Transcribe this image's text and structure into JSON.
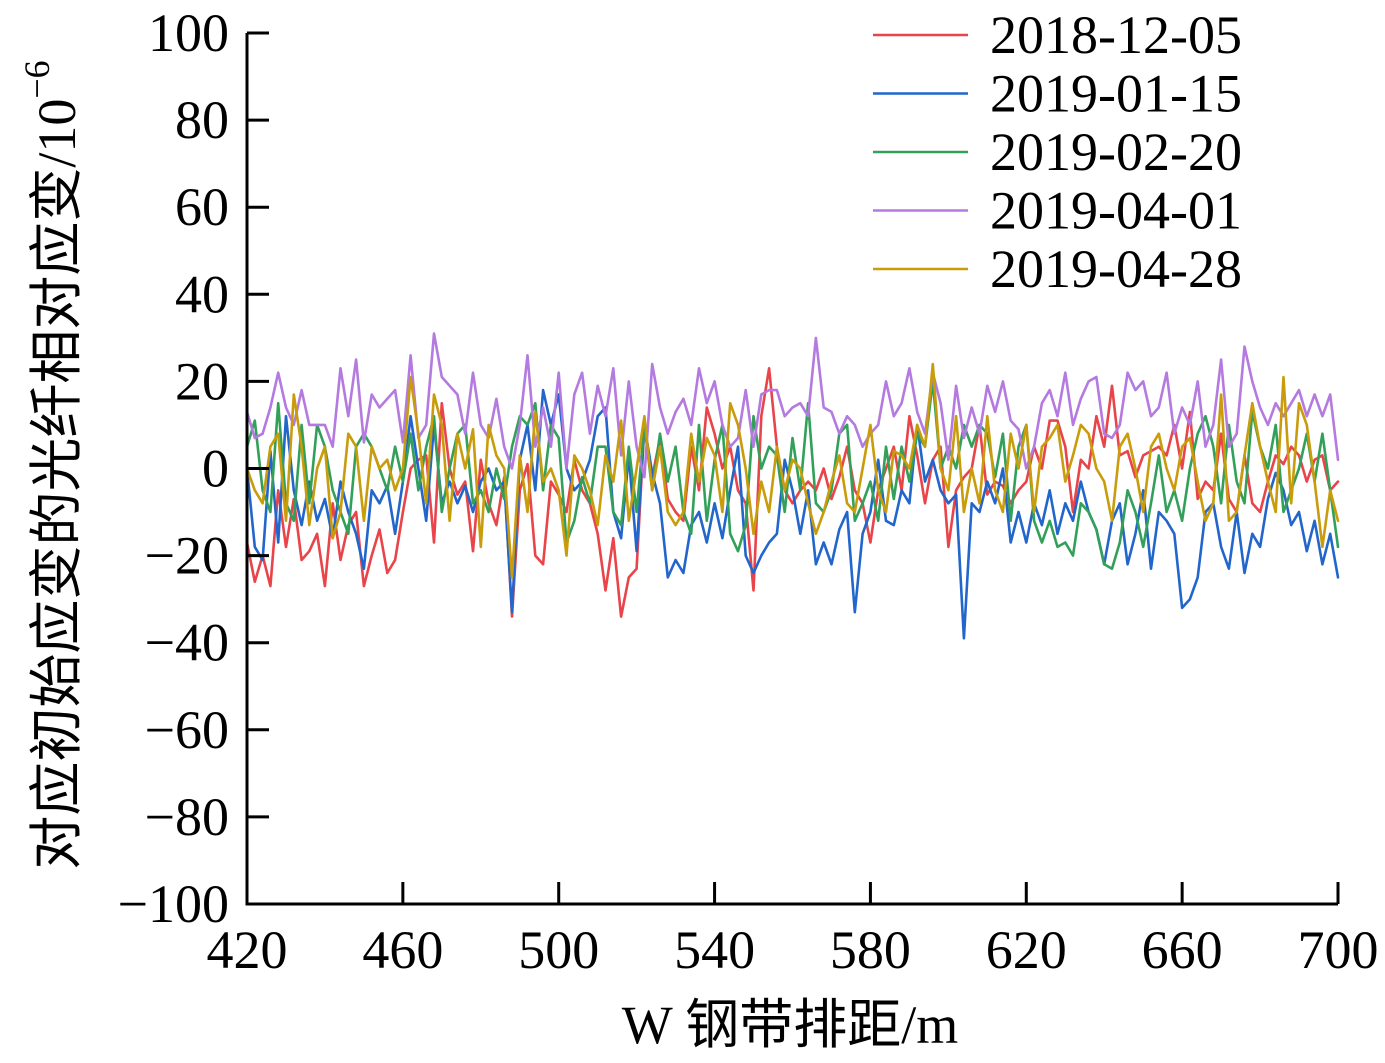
{
  "chart_data": {
    "type": "line",
    "xlabel": "W 钢带排距/m",
    "ylabel": "对应初始应变的光纤相对应变/10",
    "ylabel_exponent": "−6",
    "xlim": [
      420,
      700
    ],
    "ylim": [
      -100,
      100
    ],
    "xticks": [
      420,
      460,
      500,
      540,
      580,
      620,
      660,
      700
    ],
    "xtick_labels": [
      "420",
      "460",
      "500",
      "540",
      "580",
      "620",
      "660",
      "700"
    ],
    "yticks": [
      -100,
      -80,
      -60,
      -40,
      -20,
      0,
      20,
      40,
      60,
      80,
      100
    ],
    "ytick_labels": [
      "−100",
      "−80",
      "−60",
      "−40",
      "−20",
      "0",
      "20",
      "40",
      "60",
      "80",
      "100"
    ],
    "grid": false,
    "legend_position": "top-right",
    "x": [
      420,
      422,
      424,
      426,
      428,
      430,
      432,
      434,
      436,
      438,
      440,
      442,
      444,
      446,
      448,
      450,
      452,
      454,
      456,
      458,
      460,
      462,
      464,
      466,
      468,
      470,
      472,
      474,
      476,
      478,
      480,
      482,
      484,
      486,
      488,
      490,
      492,
      494,
      496,
      498,
      500,
      502,
      504,
      506,
      508,
      510,
      512,
      514,
      516,
      518,
      520,
      522,
      524,
      526,
      528,
      530,
      532,
      534,
      536,
      538,
      540,
      542,
      544,
      546,
      548,
      550,
      552,
      554,
      556,
      558,
      560,
      562,
      564,
      566,
      568,
      570,
      572,
      574,
      576,
      578,
      580,
      582,
      584,
      586,
      588,
      590,
      592,
      594,
      596,
      598,
      600,
      602,
      604,
      606,
      608,
      610,
      612,
      614,
      616,
      618,
      620,
      622,
      624,
      626,
      628,
      630,
      632,
      634,
      636,
      638,
      640,
      642,
      644,
      646,
      648,
      650,
      652,
      654,
      656,
      658,
      660,
      662,
      664,
      666,
      668,
      670,
      672,
      674,
      676,
      678,
      680,
      682,
      684,
      686,
      688,
      690,
      692,
      694,
      696,
      698,
      700
    ],
    "series": [
      {
        "name": "2018-12-05",
        "color": "#e8444a",
        "values": [
          -17,
          -26,
          -20,
          -27,
          -5,
          -18,
          -7,
          -21,
          -19,
          -15,
          -27,
          -8,
          -21,
          -13,
          -10,
          -27,
          -20,
          -14,
          -24,
          -21,
          -10,
          0,
          2,
          3,
          -17,
          15,
          0,
          -6,
          -3,
          -19,
          2,
          -8,
          -13,
          -2,
          -34,
          -5,
          1,
          -20,
          -22,
          -3,
          -6,
          -10,
          2,
          -5,
          -8,
          -15,
          -28,
          -16,
          -34,
          -25,
          -23,
          10,
          -2,
          7,
          -7,
          -10,
          -12,
          5,
          -5,
          14,
          8,
          0,
          5,
          -5,
          -8,
          -28,
          12,
          23,
          5,
          -5,
          -8,
          -5,
          -3,
          -5,
          0,
          -7,
          -2,
          5,
          -5,
          -8,
          -17,
          -5,
          0,
          5,
          -5,
          12,
          3,
          -8,
          2,
          5,
          -18,
          -5,
          -2,
          0,
          10,
          -6,
          -3,
          -4,
          -8,
          -5,
          -3,
          5,
          0,
          11,
          11,
          5,
          -10,
          2,
          0,
          12,
          5,
          19,
          3,
          4,
          -2,
          3,
          4,
          5,
          3,
          10,
          0,
          13,
          -7,
          -3,
          -5,
          8,
          -7,
          -10,
          3,
          -8,
          -10,
          -3,
          3,
          1,
          5,
          3,
          -3,
          2,
          3,
          -5,
          -3
        ]
      },
      {
        "name": "2019-01-15",
        "color": "#2266cc",
        "values": [
          0,
          -18,
          -21,
          4,
          -17,
          12,
          -5,
          -13,
          -3,
          -12,
          -7,
          -16,
          -3,
          -10,
          -15,
          -23,
          -5,
          -8,
          -4,
          -15,
          -3,
          12,
          0,
          -12,
          10,
          -8,
          -3,
          -8,
          -4,
          -10,
          -3,
          0,
          -5,
          -3,
          -33,
          2,
          10,
          -5,
          18,
          10,
          17,
          0,
          -5,
          -3,
          2,
          12,
          14,
          -10,
          -16,
          3,
          -19,
          10,
          -1,
          -8,
          -25,
          -21,
          -24,
          -13,
          -10,
          -17,
          -8,
          -16,
          -5,
          5,
          -20,
          -24,
          -20,
          -17,
          -15,
          2,
          -5,
          -15,
          -5,
          -22,
          -17,
          -22,
          -14,
          -10,
          -33,
          -15,
          -10,
          2,
          -12,
          -13,
          -5,
          -8,
          10,
          -3,
          2,
          -5,
          -8,
          -6,
          -39,
          -8,
          -10,
          -3,
          -8,
          0,
          -17,
          -10,
          -17,
          -8,
          -13,
          -5,
          -15,
          -8,
          -12,
          -3,
          -10,
          -14,
          -22,
          -12,
          -8,
          -22,
          -15,
          -5,
          -23,
          -10,
          -12,
          -15,
          -32,
          -30,
          -25,
          -10,
          -8,
          -18,
          -23,
          -10,
          -24,
          -15,
          -18,
          -7,
          -1,
          -5,
          -13,
          -10,
          -19,
          -12,
          -22,
          -15,
          -25
        ]
      },
      {
        "name": "2019-02-20",
        "color": "#33a05a",
        "values": [
          5,
          11,
          -5,
          -10,
          15,
          -8,
          -12,
          10,
          -8,
          10,
          5,
          -5,
          -10,
          -15,
          5,
          8,
          5,
          0,
          -5,
          5,
          -3,
          8,
          -5,
          5,
          12,
          -10,
          0,
          8,
          10,
          -8,
          -5,
          -10,
          0,
          -7,
          5,
          12,
          10,
          15,
          -5,
          10,
          7,
          -17,
          -12,
          -2,
          -8,
          5,
          5,
          -10,
          -13,
          5,
          -10,
          10,
          -5,
          8,
          -3,
          5,
          -10,
          -15,
          10,
          -12,
          2,
          10,
          -15,
          -19,
          -13,
          12,
          0,
          5,
          3,
          -10,
          7,
          -5,
          15,
          -8,
          -10,
          -5,
          8,
          10,
          -12,
          -8,
          -3,
          -12,
          5,
          -7,
          5,
          -3,
          8,
          5,
          20,
          0,
          5,
          0,
          10,
          5,
          10,
          8,
          -2,
          8,
          -12,
          5,
          10,
          -12,
          -17,
          -12,
          -18,
          -17,
          -20,
          -8,
          -10,
          -14,
          -22,
          -23,
          -17,
          -5,
          -10,
          -18,
          -8,
          3,
          -10,
          -5,
          -12,
          0,
          8,
          12,
          5,
          -8,
          10,
          -3,
          -8,
          13,
          5,
          0,
          10,
          -10,
          -5,
          0,
          8,
          -3,
          8,
          -5,
          -18
        ]
      },
      {
        "name": "2019-04-01",
        "color": "#b47ae0",
        "values": [
          13,
          7,
          8,
          14,
          22,
          14,
          10,
          18,
          10,
          10,
          10,
          5,
          23,
          12,
          25,
          6,
          17,
          14,
          16,
          18,
          6,
          26,
          7,
          10,
          31,
          21,
          19,
          17,
          8,
          22,
          10,
          7,
          16,
          5,
          0,
          10,
          26,
          5,
          14,
          5,
          22,
          0,
          17,
          22,
          8,
          19,
          12,
          23,
          3,
          20,
          5,
          -2,
          24,
          14,
          8,
          13,
          16,
          10,
          23,
          15,
          20,
          10,
          5,
          7,
          18,
          5,
          17,
          18,
          18,
          12,
          14,
          15,
          12,
          30,
          14,
          13,
          8,
          12,
          10,
          5,
          8,
          10,
          20,
          12,
          15,
          23,
          13,
          8,
          22,
          15,
          2,
          19,
          7,
          14,
          8,
          19,
          13,
          20,
          11,
          9,
          0,
          5,
          15,
          18,
          12,
          22,
          10,
          16,
          20,
          21,
          8,
          7,
          10,
          22,
          18,
          20,
          12,
          14,
          22,
          8,
          14,
          10,
          20,
          5,
          10,
          25,
          5,
          8,
          28,
          20,
          14,
          10,
          15,
          12,
          15,
          18,
          12,
          17,
          12,
          17,
          2
        ]
      },
      {
        "name": "2019-04-28",
        "color": "#c99c0c",
        "values": [
          0,
          -5,
          -8,
          5,
          8,
          -12,
          17,
          5,
          -13,
          0,
          5,
          -16,
          -10,
          8,
          5,
          -12,
          5,
          0,
          2,
          -5,
          0,
          21,
          8,
          -8,
          17,
          10,
          -12,
          8,
          0,
          9,
          -18,
          10,
          3,
          0,
          -25,
          3,
          -10,
          13,
          -3,
          0,
          -5,
          -20,
          3,
          0,
          -5,
          -13,
          3,
          -3,
          11,
          -12,
          0,
          12,
          -5,
          5,
          -10,
          -13,
          -10,
          8,
          -3,
          7,
          3,
          -10,
          15,
          10,
          0,
          -15,
          -3,
          -10,
          5,
          -5,
          2,
          0,
          -8,
          -15,
          -10,
          -3,
          3,
          -8,
          -10,
          0,
          10,
          -5,
          -10,
          4,
          3,
          0,
          10,
          5,
          24,
          0,
          -5,
          12,
          -10,
          0,
          -8,
          12,
          -5,
          -10,
          8,
          0,
          10,
          -10,
          5,
          7,
          10,
          -3,
          3,
          10,
          8,
          0,
          -3,
          -12,
          5,
          8,
          0,
          -10,
          5,
          8,
          0,
          -5,
          5,
          7,
          -3,
          -12,
          -8,
          17,
          -12,
          -10,
          3,
          15,
          5,
          -3,
          -10,
          21,
          -8,
          15,
          10,
          -3,
          -18,
          -5,
          -12
        ]
      }
    ]
  }
}
